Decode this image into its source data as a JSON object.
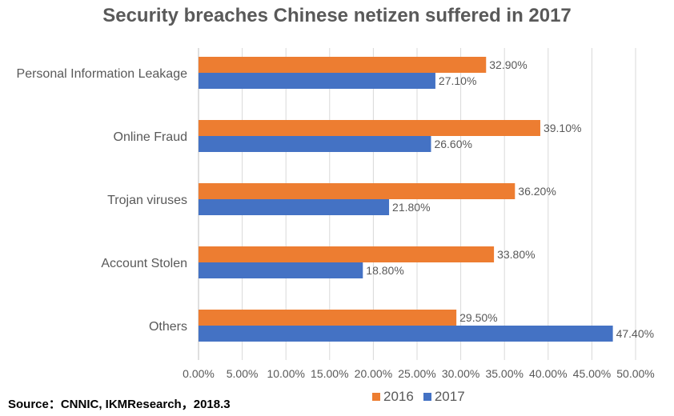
{
  "chart_data": {
    "type": "bar",
    "orientation": "horizontal",
    "title": "Security breaches Chinese netizen suffered in 2017",
    "categories": [
      "Personal Information Leakage",
      "Online Fraud",
      "Trojan viruses",
      "Account Stolen",
      "Others"
    ],
    "series": [
      {
        "name": "2016",
        "color": "#ED7D31",
        "values": [
          32.9,
          39.1,
          36.2,
          33.8,
          29.5
        ],
        "labels": [
          "32.90%",
          "39.10%",
          "36.20%",
          "33.80%",
          "29.50%"
        ]
      },
      {
        "name": "2017",
        "color": "#4472C4",
        "values": [
          27.1,
          26.6,
          21.8,
          18.8,
          47.4
        ],
        "labels": [
          "27.10%",
          "26.60%",
          "21.80%",
          "18.80%",
          "47.40%"
        ]
      }
    ],
    "xlim": [
      0,
      50
    ],
    "xticks": [
      "0.00%",
      "5.00%",
      "10.00%",
      "15.00%",
      "20.00%",
      "25.00%",
      "30.00%",
      "35.00%",
      "40.00%",
      "45.00%",
      "50.00%"
    ],
    "grid": true,
    "legend": "bottom"
  },
  "source": "Source：CNNIC, IKMResearch，2018.3"
}
